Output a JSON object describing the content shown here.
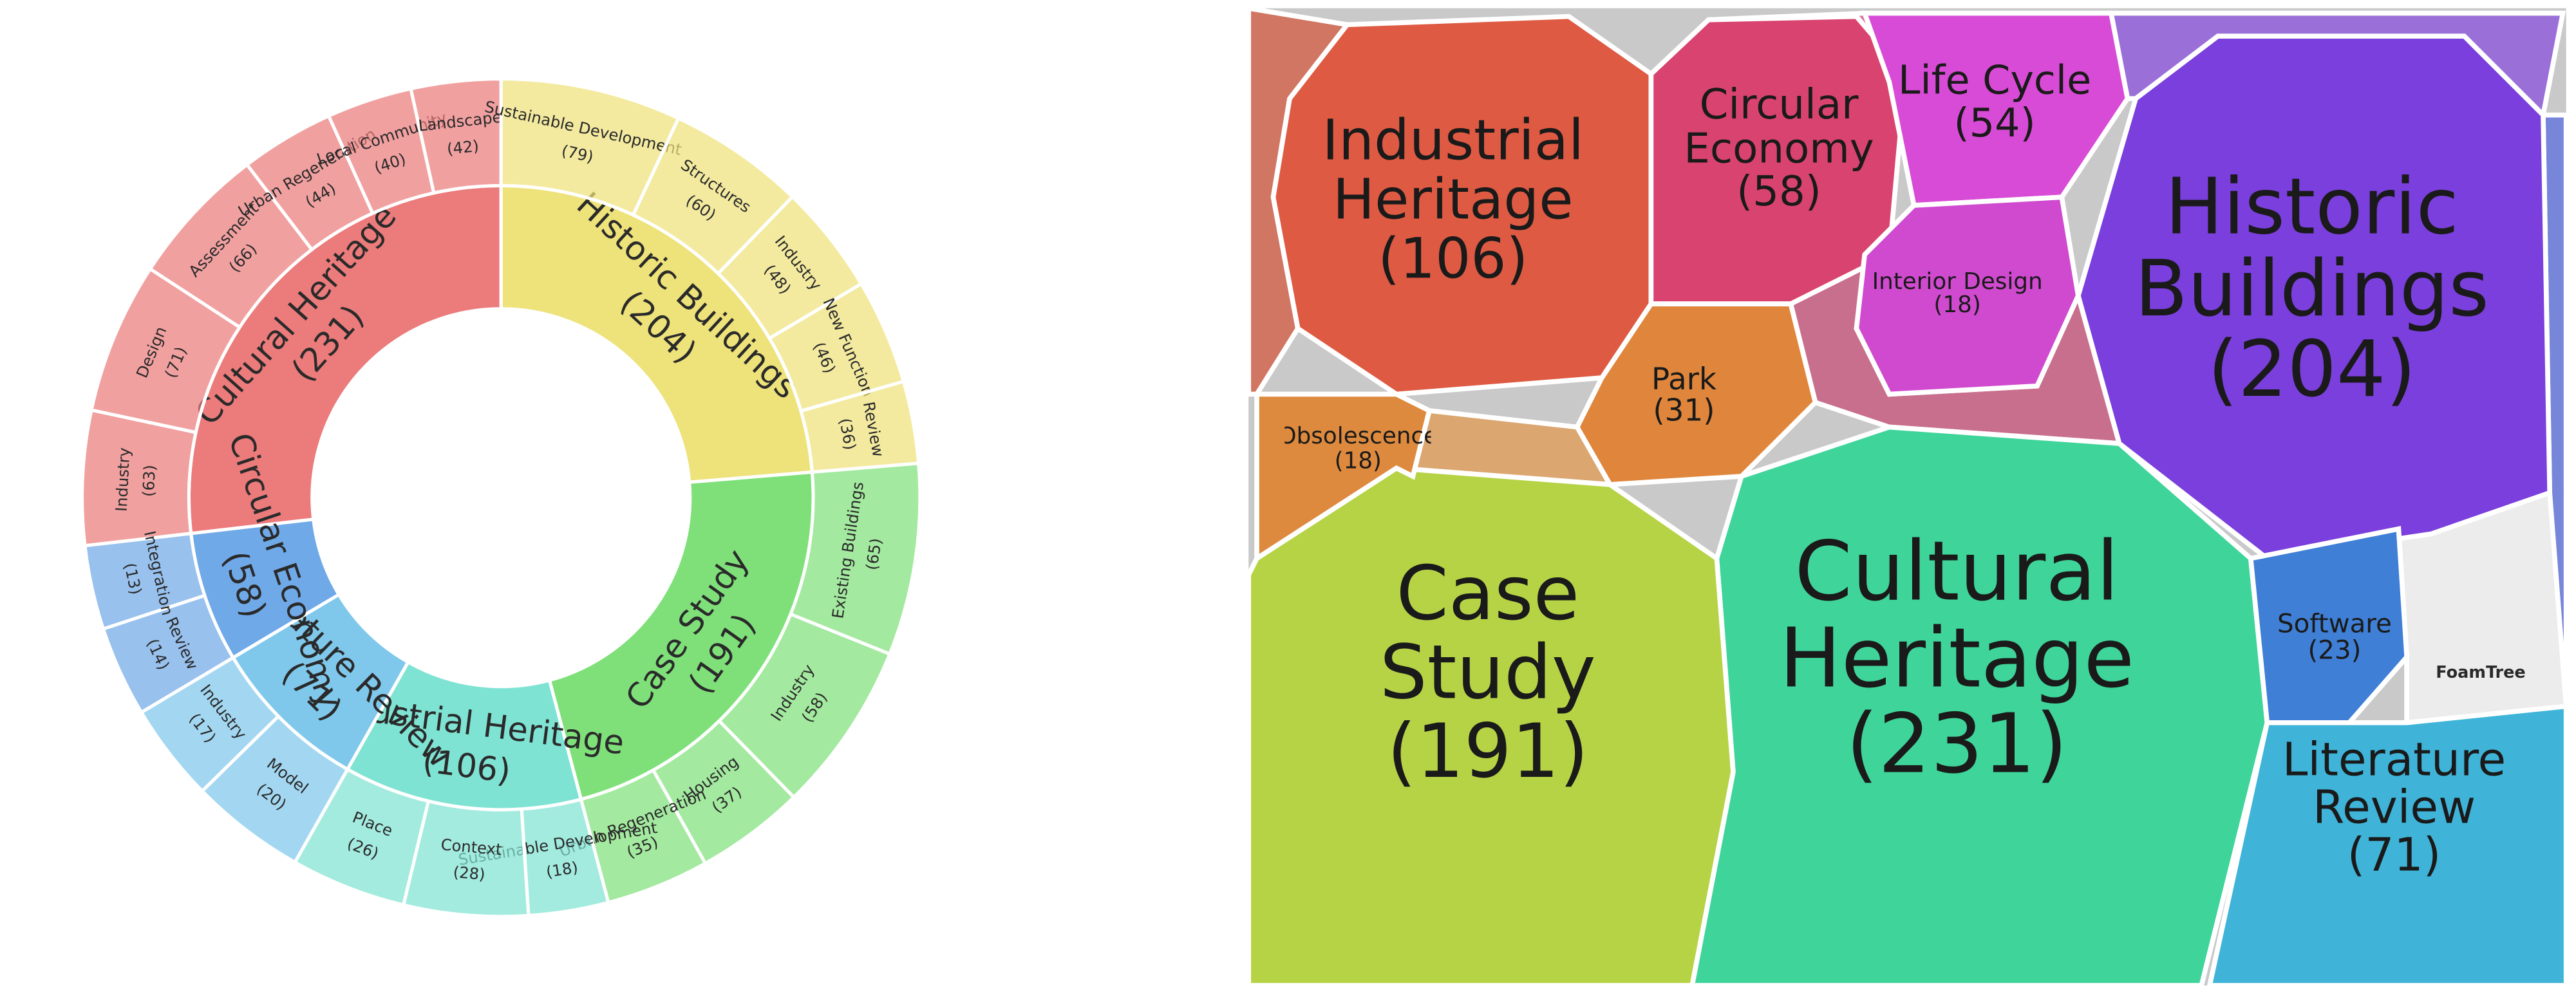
{
  "chart_data": [
    {
      "type": "sunburst",
      "categories": [
        "Cultural Heritage",
        "Historic Buildings",
        "Case Study",
        "Industrial Heritage",
        "Literature Review",
        "Circular Economy"
      ],
      "values": [
        231,
        204,
        191,
        106,
        71,
        58
      ],
      "value_labels": [
        "(231)",
        "(204)",
        "(191)",
        "(106)",
        "(71)",
        "(58)"
      ],
      "colors": [
        "#ec7b7b",
        "#eee27a",
        "#7fe07a",
        "#7fe3d3",
        "#7fc8ec",
        "#70a9e8"
      ],
      "children": [
        {
          "categories": [
            "Industry",
            "Design",
            "Assessment",
            "Urban Regeneration",
            "Local Community",
            "Landscape"
          ],
          "values": [
            63,
            71,
            66,
            44,
            40,
            42
          ],
          "value_labels": [
            "(63)",
            "(71)",
            "(66)",
            "(44)",
            "(40)",
            "(42)"
          ]
        },
        {
          "categories": [
            "Sustainable Development",
            "Structures",
            "Industry",
            "New Function",
            "Review"
          ],
          "values": [
            79,
            60,
            48,
            46,
            36
          ],
          "value_labels": [
            "(79)",
            "(60)",
            "(48)",
            "(46)",
            "(36)"
          ]
        },
        {
          "categories": [
            "Existing Buildings",
            "Industry",
            "Housing",
            "Urban Regeneration"
          ],
          "values": [
            65,
            58,
            37,
            35
          ],
          "value_labels": [
            "(65)",
            "(58)",
            "(37)",
            "(35)"
          ]
        },
        {
          "categories": [
            "Sustainable Development",
            "Context",
            "Place"
          ],
          "values": [
            18,
            28,
            26
          ],
          "value_labels": [
            "(18)",
            "(28)",
            "(26)"
          ]
        },
        {
          "categories": [
            "Model",
            "Industry"
          ],
          "values": [
            20,
            17
          ],
          "value_labels": [
            "(20)",
            "(17)"
          ]
        },
        {
          "categories": [
            "Review",
            "Integration"
          ],
          "values": [
            14,
            13
          ],
          "value_labels": [
            "(14)",
            "(13)"
          ]
        }
      ]
    },
    {
      "type": "voronoi_treemap",
      "categories": [
        "Industrial Heritage",
        "Circular Economy",
        "Life Cycle",
        "Historic Buildings",
        "Interior Design",
        "Park",
        "Case Study",
        "Cultural Heritage",
        "Software",
        "Literature Review",
        "Obsolescence"
      ],
      "values": [
        106,
        58,
        54,
        204,
        18,
        31,
        191,
        231,
        23,
        71,
        18
      ],
      "value_labels": [
        "(106)",
        "(58)",
        "(54)",
        "(204)",
        "(18)",
        "(31)",
        "(191)",
        "(231)",
        "(23)",
        "(71)",
        "(18)"
      ],
      "colors": [
        "#de5a43",
        "#d9436f",
        "#d84bd6",
        "#7a3fdc",
        "#d04ad0",
        "#e0863c",
        "#b6d345",
        "#3fd49a",
        "#3f7fd6",
        "#3fb4d8",
        "#dd8a3e"
      ],
      "logo": "FoamTree"
    }
  ]
}
